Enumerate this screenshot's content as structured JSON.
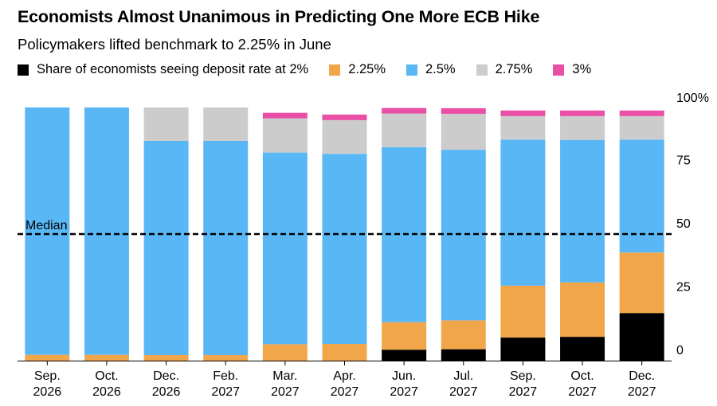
{
  "title": "Economists Almost Unanimous in Predicting One More ECB Hike",
  "subtitle": "Policymakers lifted benchmark to 2.25% in June",
  "legend": [
    {
      "label": "Share of economists seeing deposit rate at 2%",
      "color": "#000000"
    },
    {
      "label": "2.25%",
      "color": "#f2a64a"
    },
    {
      "label": "2.5%",
      "color": "#5ab7f5"
    },
    {
      "label": "2.75%",
      "color": "#cccccc"
    },
    {
      "label": "3%",
      "color": "#e84fa5"
    }
  ],
  "chart_data": {
    "type": "bar",
    "stacked": true,
    "categories": [
      "Sep. 2026",
      "Oct. 2026",
      "Dec. 2026",
      "Feb. 2027",
      "Mar. 2027",
      "Apr. 2027",
      "Jun. 2027",
      "Jul. 2027",
      "Sep. 2027",
      "Oct. 2027",
      "Dec. 2027"
    ],
    "category_lines": [
      [
        "Sep.",
        "2026"
      ],
      [
        "Oct.",
        "2026"
      ],
      [
        "Dec.",
        "2026"
      ],
      [
        "Feb.",
        "2027"
      ],
      [
        "Mar.",
        "2027"
      ],
      [
        "Apr.",
        "2027"
      ],
      [
        "Jun.",
        "2027"
      ],
      [
        "Jul.",
        "2027"
      ],
      [
        "Sep.",
        "2027"
      ],
      [
        "Oct.",
        "2027"
      ],
      [
        "Dec.",
        "2027"
      ]
    ],
    "series": [
      {
        "name": "Share of economists seeing deposit rate at 2%",
        "color": "#000000",
        "values": [
          0,
          0,
          0,
          0,
          0,
          0,
          4.3,
          4.5,
          9.1,
          9.4,
          18.8
        ]
      },
      {
        "name": "2.25%",
        "color": "#f2a64a",
        "values": [
          2.3,
          2.3,
          2.2,
          2.2,
          6.5,
          6.6,
          10.9,
          11.4,
          20.5,
          21.5,
          23.9
        ]
      },
      {
        "name": "2.5%",
        "color": "#5ab7f5",
        "values": [
          97.7,
          97.7,
          84.6,
          84.6,
          75.7,
          75.1,
          69.1,
          67.4,
          57.7,
          56.3,
          44.6
        ]
      },
      {
        "name": "2.75%",
        "color": "#cccccc",
        "values": [
          0,
          0,
          13.2,
          13.2,
          13.5,
          13.3,
          13.3,
          14.2,
          9.3,
          9.4,
          9.3
        ]
      },
      {
        "name": "3%",
        "color": "#e84fa5",
        "values": [
          0,
          0,
          0,
          0,
          2.2,
          2.2,
          2.2,
          2.2,
          2.2,
          2.2,
          2.2
        ]
      }
    ],
    "ylim": [
      0,
      100
    ],
    "yticks": [
      {
        "value": 0,
        "label": "0"
      },
      {
        "value": 25,
        "label": "25"
      },
      {
        "value": 50,
        "label": "50"
      },
      {
        "value": 75,
        "label": "75"
      },
      {
        "value": 100,
        "label": "100%"
      }
    ],
    "reference_line": {
      "value": 50,
      "label": "Median"
    },
    "grid": false,
    "legend_position": "top"
  }
}
